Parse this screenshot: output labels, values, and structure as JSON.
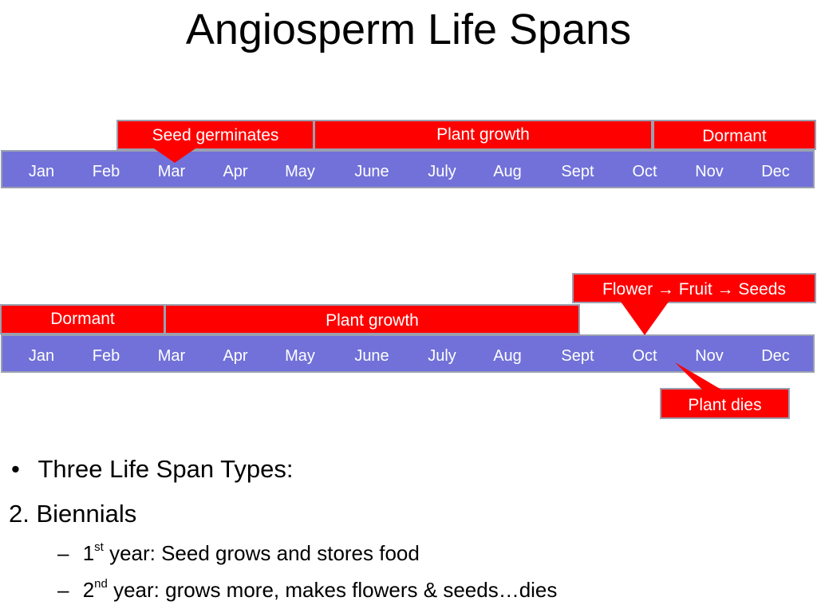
{
  "title": "Angiosperm Life Spans",
  "months": [
    "Jan",
    "Feb",
    "Mar",
    "Apr",
    "May",
    "June",
    "July",
    "Aug",
    "Sept",
    "Oct",
    "Nov",
    "Dec"
  ],
  "timeline_1": {
    "seed_germinates": "Seed germinates",
    "plant_growth": "Plant growth",
    "dormant": "Dormant"
  },
  "timeline_2": {
    "flower_fruit_seeds": "Flower → Fruit → Seeds",
    "dormant": "Dormant",
    "plant_growth": "Plant growth",
    "plant_dies": "Plant dies"
  },
  "bullets": {
    "types": "Three Life Span Types:",
    "biennials": "2. Biennials",
    "year1_ord": "1",
    "year1_sup": "st",
    "year1_text": " year: Seed grows and stores food",
    "year2_ord": "2",
    "year2_sup": "nd",
    "year2_text": " year: grows more, makes flowers & seeds…dies",
    "bullet_mark": "•",
    "dash_mark": "–"
  },
  "colors": {
    "timeline": "#7171d9",
    "event": "#ff0000",
    "border": "#9aa0b0"
  }
}
